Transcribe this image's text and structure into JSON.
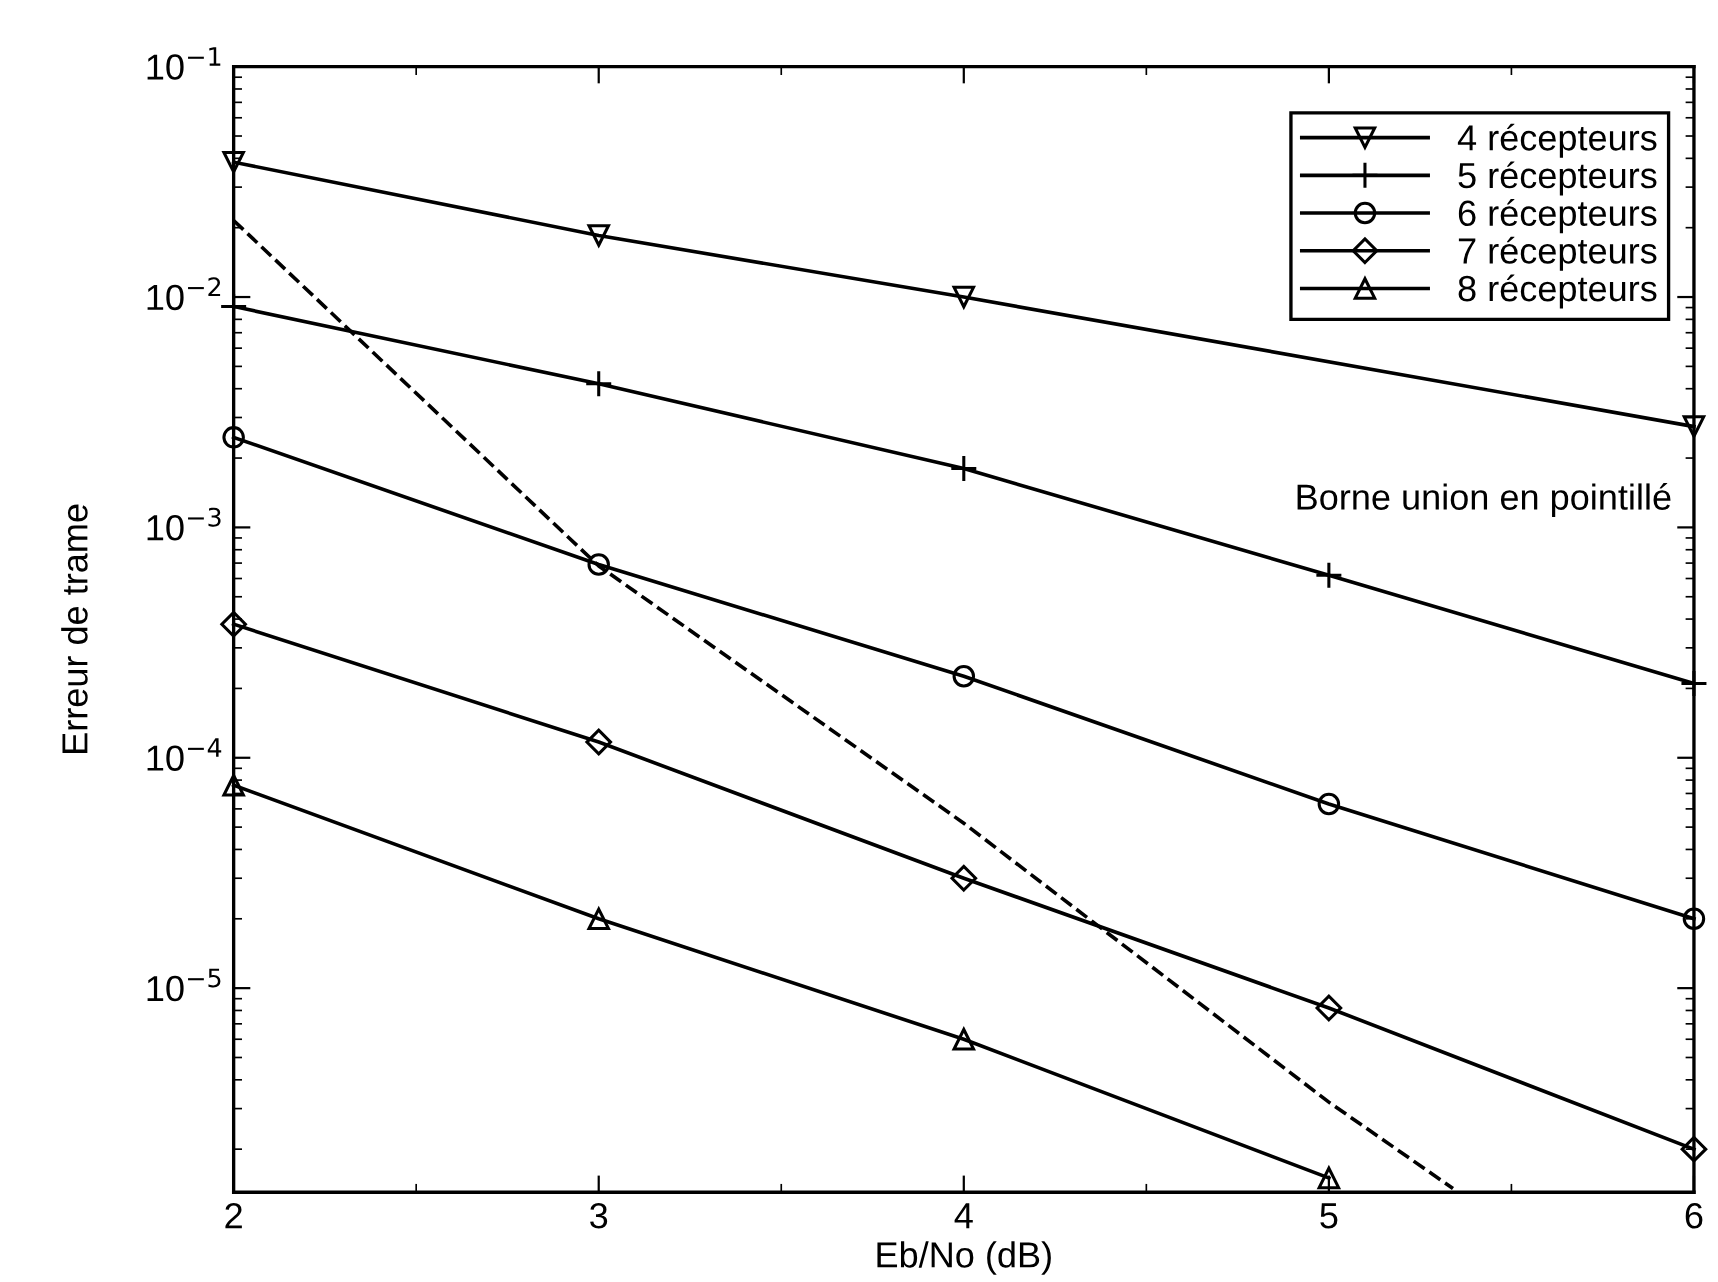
{
  "chart_data": {
    "type": "line",
    "xlabel": "Eb/No (dB)",
    "ylabel": "Erreur de trame",
    "x": [
      2,
      3,
      4,
      5,
      6
    ],
    "series": [
      {
        "name": "4 récepteurs",
        "color": "#000000",
        "marker": "triangle_down",
        "line_style": "solid",
        "values": [
          0.0385,
          0.0185,
          0.01,
          null,
          0.00274
        ]
      },
      {
        "name": "5 récepteurs",
        "color": "#000000",
        "marker": "plus",
        "line_style": "solid",
        "values": [
          0.0091,
          0.0042,
          0.0018,
          0.00062,
          0.00021
        ]
      },
      {
        "name": "6 récepteurs",
        "color": "#000000",
        "marker": "circle",
        "line_style": "solid",
        "values": [
          0.00246,
          0.00069,
          0.000226,
          6.3e-05,
          2e-05
        ]
      },
      {
        "name": "7 récepteurs",
        "color": "#000000",
        "marker": "diamond",
        "line_style": "solid",
        "values": [
          0.00038,
          0.000117,
          3e-05,
          8.2e-06,
          2e-06
        ]
      },
      {
        "name": "8 récepteurs",
        "color": "#000000",
        "marker": "triangle",
        "line_style": "solid",
        "values": [
          7.6e-05,
          2e-05,
          6e-06,
          1.5e-06,
          null
        ]
      },
      {
        "color": "#000000",
        "marker": "none",
        "line_style": "dashed",
        "x": [
          2,
          3,
          4,
          5,
          5.34
        ],
        "values": [
          0.0215,
          0.00068,
          5.2e-05,
          3.2e-06,
          1.35e-06
        ]
      }
    ],
    "log": "y",
    "xlim": [
      2,
      6
    ],
    "xticks": [
      2,
      3,
      4,
      5,
      6
    ],
    "ylim": [
      1.3e-06,
      0.1
    ],
    "yticks": [
      {
        "value": 0.1,
        "label": "10$^{−1}$"
      },
      {
        "value": 0.01,
        "label": "10$^{−2}$"
      },
      {
        "value": 0.001,
        "label": "10$^{−3}$"
      },
      {
        "value": 0.0001,
        "label": "10$^{−4}$"
      },
      {
        "value": 1e-05,
        "label": "10$^{−5}$"
      }
    ],
    "grid": false,
    "legend": "top right",
    "annotations": [
      "Borne union en pointillé"
    ]
  }
}
